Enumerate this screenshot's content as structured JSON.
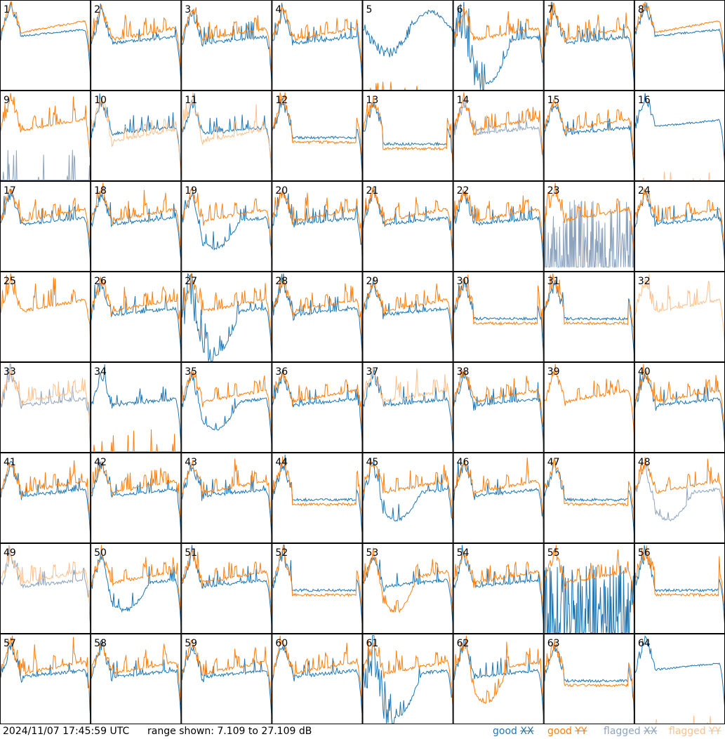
{
  "colors": {
    "good_xx": "#1f77b4",
    "good_yy": "#ff7f0e",
    "flagged_xx": "#8da4bf",
    "flagged_yy": "#ffc08a"
  },
  "footer": {
    "timestamp": "2024/11/07 17:45:59 UTC",
    "range_text": "range shown: 7.109 to 27.109 dB",
    "legend": [
      {
        "word": "good",
        "pol": "XX",
        "color": "#1f77b4"
      },
      {
        "word": "good",
        "pol": "YY",
        "color": "#ff7f0e"
      },
      {
        "word": "flagged",
        "pol": "XX",
        "color": "#8da4bf"
      },
      {
        "word": "flagged",
        "pol": "YY",
        "color": "#ffc08a"
      }
    ]
  },
  "chart_data": {
    "type": "line",
    "grid": {
      "rows": 8,
      "cols": 8
    },
    "ylim": [
      7.109,
      27.109
    ],
    "panels": [
      {
        "label": "1",
        "xx": "good",
        "yy": "good",
        "shape": "flat_high"
      },
      {
        "label": "2",
        "xx": "good",
        "yy": "good",
        "shape": "standard"
      },
      {
        "label": "3",
        "xx": "good",
        "yy": "good",
        "shape": "standard"
      },
      {
        "label": "4",
        "xx": "good",
        "yy": "good",
        "shape": "standard"
      },
      {
        "label": "5",
        "xx": "good",
        "yy": "good",
        "shape": "xx_dip_yy_dead"
      },
      {
        "label": "6",
        "xx": "good",
        "yy": "good",
        "shape": "xx_deep_dip"
      },
      {
        "label": "7",
        "xx": "good",
        "yy": "good",
        "shape": "standard"
      },
      {
        "label": "8",
        "xx": "good",
        "yy": "good",
        "shape": "flat_high"
      },
      {
        "label": "9",
        "xx": "flagged",
        "yy": "good",
        "shape": "xx_spikes"
      },
      {
        "label": "10",
        "xx": "good",
        "yy": "flagged",
        "shape": "yy_low"
      },
      {
        "label": "11",
        "xx": "good",
        "yy": "flagged",
        "shape": "yy_low"
      },
      {
        "label": "12",
        "xx": "good",
        "yy": "good",
        "shape": "flat_mid"
      },
      {
        "label": "13",
        "xx": "good",
        "yy": "good",
        "shape": "flat_low"
      },
      {
        "label": "14",
        "xx": "flagged",
        "yy": "good",
        "shape": "standard"
      },
      {
        "label": "15",
        "xx": "good",
        "yy": "good",
        "shape": "standard"
      },
      {
        "label": "16",
        "xx": "good",
        "yy": "flagged",
        "shape": "yy_dead"
      },
      {
        "label": "17",
        "xx": "good",
        "yy": "good",
        "shape": "standard"
      },
      {
        "label": "18",
        "xx": "good",
        "yy": "good",
        "shape": "standard"
      },
      {
        "label": "19",
        "xx": "good",
        "yy": "good",
        "shape": "xx_dip"
      },
      {
        "label": "20",
        "xx": "good",
        "yy": "good",
        "shape": "standard"
      },
      {
        "label": "21",
        "xx": "good",
        "yy": "good",
        "shape": "standard"
      },
      {
        "label": "22",
        "xx": "good",
        "yy": "good",
        "shape": "standard"
      },
      {
        "label": "23",
        "xx": "flagged",
        "yy": "good",
        "shape": "xx_noise"
      },
      {
        "label": "24",
        "xx": "good",
        "yy": "good",
        "shape": "standard"
      },
      {
        "label": "25",
        "xx": "good",
        "yy": "good",
        "shape": "yy_only"
      },
      {
        "label": "26",
        "xx": "good",
        "yy": "good",
        "shape": "standard"
      },
      {
        "label": "27",
        "xx": "good",
        "yy": "good",
        "shape": "xx_deep_dip"
      },
      {
        "label": "28",
        "xx": "good",
        "yy": "good",
        "shape": "standard"
      },
      {
        "label": "29",
        "xx": "good",
        "yy": "good",
        "shape": "standard"
      },
      {
        "label": "30",
        "xx": "good",
        "yy": "good",
        "shape": "flat_mid"
      },
      {
        "label": "31",
        "xx": "good",
        "yy": "good",
        "shape": "flat_mid"
      },
      {
        "label": "32",
        "xx": "flagged",
        "yy": "flagged",
        "shape": "yy_only"
      },
      {
        "label": "33",
        "xx": "flagged",
        "yy": "flagged",
        "shape": "standard"
      },
      {
        "label": "34",
        "xx": "good",
        "yy": "good",
        "shape": "yy_spikes"
      },
      {
        "label": "35",
        "xx": "good",
        "yy": "good",
        "shape": "xx_dip"
      },
      {
        "label": "36",
        "xx": "good",
        "yy": "good",
        "shape": "standard"
      },
      {
        "label": "37",
        "xx": "good",
        "yy": "flagged",
        "shape": "standard"
      },
      {
        "label": "38",
        "xx": "good",
        "yy": "good",
        "shape": "standard"
      },
      {
        "label": "39",
        "xx": "good",
        "yy": "good",
        "shape": "yy_only"
      },
      {
        "label": "40",
        "xx": "good",
        "yy": "good",
        "shape": "standard"
      },
      {
        "label": "41",
        "xx": "good",
        "yy": "good",
        "shape": "standard"
      },
      {
        "label": "42",
        "xx": "good",
        "yy": "good",
        "shape": "standard"
      },
      {
        "label": "43",
        "xx": "good",
        "yy": "good",
        "shape": "standard"
      },
      {
        "label": "44",
        "xx": "good",
        "yy": "good",
        "shape": "flat_mid"
      },
      {
        "label": "45",
        "xx": "good",
        "yy": "good",
        "shape": "xx_dip"
      },
      {
        "label": "46",
        "xx": "good",
        "yy": "good",
        "shape": "standard"
      },
      {
        "label": "47",
        "xx": "good",
        "yy": "good",
        "shape": "flat_mid"
      },
      {
        "label": "48",
        "xx": "flagged",
        "yy": "good",
        "shape": "xx_dip"
      },
      {
        "label": "49",
        "xx": "flagged",
        "yy": "flagged",
        "shape": "standard"
      },
      {
        "label": "50",
        "xx": "good",
        "yy": "good",
        "shape": "xx_dip"
      },
      {
        "label": "51",
        "xx": "good",
        "yy": "good",
        "shape": "standard"
      },
      {
        "label": "52",
        "xx": "good",
        "yy": "good",
        "shape": "flat_mid"
      },
      {
        "label": "53",
        "xx": "good",
        "yy": "good",
        "shape": "yy_dip"
      },
      {
        "label": "54",
        "xx": "good",
        "yy": "good",
        "shape": "standard"
      },
      {
        "label": "55",
        "xx": "good",
        "yy": "good",
        "shape": "xx_spikes"
      },
      {
        "label": "56",
        "xx": "good",
        "yy": "good",
        "shape": "flat_mid"
      },
      {
        "label": "57",
        "xx": "good",
        "yy": "good",
        "shape": "standard"
      },
      {
        "label": "58",
        "xx": "good",
        "yy": "good",
        "shape": "standard"
      },
      {
        "label": "59",
        "xx": "good",
        "yy": "good",
        "shape": "standard"
      },
      {
        "label": "60",
        "xx": "good",
        "yy": "good",
        "shape": "standard"
      },
      {
        "label": "61",
        "xx": "good",
        "yy": "good",
        "shape": "xx_deep_dip"
      },
      {
        "label": "62",
        "xx": "good",
        "yy": "good",
        "shape": "yy_dip"
      },
      {
        "label": "63",
        "xx": "good",
        "yy": "good",
        "shape": "flat_mid"
      },
      {
        "label": "64",
        "xx": "good",
        "yy": "flagged",
        "shape": "yy_dead"
      }
    ]
  }
}
